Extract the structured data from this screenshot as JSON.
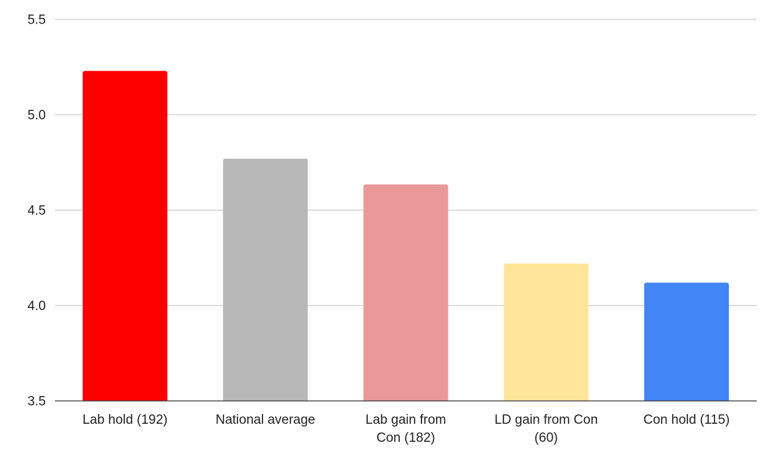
{
  "chart_data": {
    "type": "bar",
    "categories": [
      [
        "Lab hold (192)"
      ],
      [
        "National average"
      ],
      [
        "Lab gain from",
        "Con (182)"
      ],
      [
        "LD gain from Con",
        "(60)"
      ],
      [
        "Con hold (115)"
      ]
    ],
    "values": [
      5.23,
      4.77,
      4.635,
      4.22,
      4.12
    ],
    "colors": [
      "#ff0000",
      "#b7b7b7",
      "#ea9999",
      "#ffe599",
      "#4285f4"
    ],
    "ylim": [
      3.5,
      5.5
    ],
    "yticks": [
      "3.5",
      "4.0",
      "4.5",
      "5.0",
      "5.5"
    ],
    "grid": true,
    "gridline_color": "#cccccc",
    "baseline_color": "#333333",
    "legend": "none"
  }
}
